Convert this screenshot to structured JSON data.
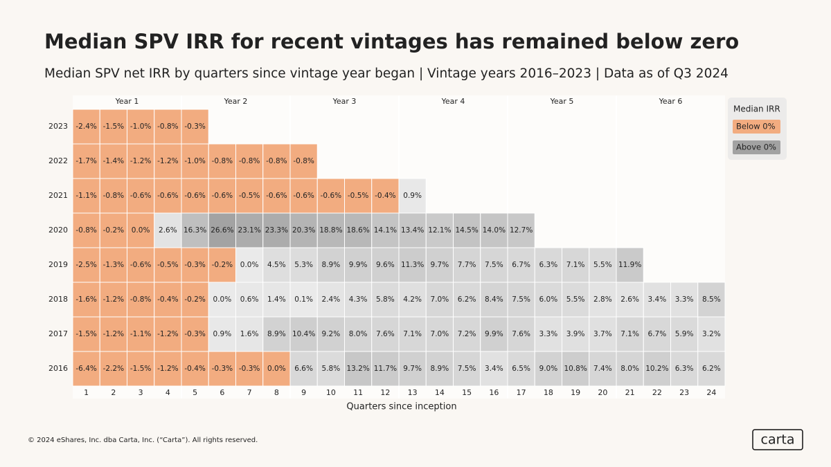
{
  "chart_data": {
    "type": "heatmap",
    "title": "Median SPV IRR for recent vintages has remained below zero",
    "subtitle": "Median SPV net IRR by quarters since vintage year began |  Vintage years 2016–2023  | Data as of Q3 2024",
    "x_label": "Quarters since inception",
    "column_groups": [
      "Year 1",
      "Year 2",
      "Year 3",
      "Year 4",
      "Year 5",
      "Year 6"
    ],
    "x": [
      1,
      2,
      3,
      4,
      5,
      6,
      7,
      8,
      9,
      10,
      11,
      12,
      13,
      14,
      15,
      16,
      17,
      18,
      19,
      20,
      21,
      22,
      23,
      24
    ],
    "y": [
      "2023",
      "2022",
      "2021",
      "2020",
      "2019",
      "2018",
      "2017",
      "2016"
    ],
    "values": [
      [
        -2.4,
        -1.5,
        -1.0,
        -0.8,
        -0.3,
        null,
        null,
        null,
        null,
        null,
        null,
        null,
        null,
        null,
        null,
        null,
        null,
        null,
        null,
        null,
        null,
        null,
        null,
        null
      ],
      [
        -1.7,
        -1.4,
        -1.2,
        -1.2,
        -1.0,
        -0.8,
        -0.8,
        -0.8,
        -0.8,
        null,
        null,
        null,
        null,
        null,
        null,
        null,
        null,
        null,
        null,
        null,
        null,
        null,
        null,
        null
      ],
      [
        -1.1,
        -0.8,
        -0.6,
        -0.6,
        -0.6,
        -0.6,
        -0.5,
        -0.6,
        -0.6,
        -0.6,
        -0.5,
        -0.4,
        0.9,
        null,
        null,
        null,
        null,
        null,
        null,
        null,
        null,
        null,
        null,
        null
      ],
      [
        -0.8,
        -0.2,
        -0.0,
        2.6,
        16.3,
        26.6,
        23.1,
        23.3,
        20.3,
        18.8,
        18.6,
        14.1,
        13.4,
        12.1,
        14.5,
        14.0,
        12.7,
        null,
        null,
        null,
        null,
        null,
        null,
        null
      ],
      [
        -2.5,
        -1.3,
        -0.6,
        -0.5,
        -0.3,
        -0.2,
        0.0,
        4.5,
        5.3,
        8.9,
        9.9,
        9.6,
        11.3,
        9.7,
        7.7,
        7.5,
        6.7,
        6.3,
        7.1,
        5.5,
        11.9,
        null,
        null,
        null
      ],
      [
        -1.6,
        -1.2,
        -0.8,
        -0.4,
        -0.2,
        0.0,
        0.6,
        1.4,
        0.1,
        2.4,
        4.3,
        5.8,
        4.2,
        7.0,
        6.2,
        8.4,
        7.5,
        6.0,
        5.5,
        2.8,
        2.6,
        3.4,
        3.3,
        8.5
      ],
      [
        -1.5,
        -1.2,
        -1.1,
        -1.2,
        -0.3,
        0.9,
        1.6,
        8.9,
        10.4,
        9.2,
        8.0,
        7.6,
        7.1,
        7.0,
        7.2,
        9.9,
        7.6,
        3.3,
        3.9,
        3.7,
        7.1,
        6.7,
        5.9,
        3.2
      ],
      [
        -6.4,
        -2.2,
        -1.5,
        -1.2,
        -0.4,
        -0.3,
        -0.3,
        -0.0,
        6.6,
        5.8,
        13.2,
        11.7,
        9.7,
        8.9,
        7.5,
        3.4,
        6.5,
        9.0,
        10.8,
        7.4,
        8.0,
        10.2,
        6.3,
        6.2
      ]
    ],
    "value_labels": [
      [
        "-2.4%",
        "-1.5%",
        "-1.0%",
        "-0.8%",
        "-0.3%",
        null,
        null,
        null,
        null,
        null,
        null,
        null,
        null,
        null,
        null,
        null,
        null,
        null,
        null,
        null,
        null,
        null,
        null,
        null
      ],
      [
        "-1.7%",
        "-1.4%",
        "-1.2%",
        "-1.2%",
        "-1.0%",
        "-0.8%",
        "-0.8%",
        "-0.8%",
        "-0.8%",
        null,
        null,
        null,
        null,
        null,
        null,
        null,
        null,
        null,
        null,
        null,
        null,
        null,
        null,
        null
      ],
      [
        "-1.1%",
        "-0.8%",
        "-0.6%",
        "-0.6%",
        "-0.6%",
        "-0.6%",
        "-0.5%",
        "-0.6%",
        "-0.6%",
        "-0.6%",
        "-0.5%",
        "-0.4%",
        "0.9%",
        null,
        null,
        null,
        null,
        null,
        null,
        null,
        null,
        null,
        null,
        null
      ],
      [
        "-0.8%",
        "-0.2%",
        "0.0%",
        "2.6%",
        "16.3%",
        "26.6%",
        "23.1%",
        "23.3%",
        "20.3%",
        "18.8%",
        "18.6%",
        "14.1%",
        "13.4%",
        "12.1%",
        "14.5%",
        "14.0%",
        "12.7%",
        null,
        null,
        null,
        null,
        null,
        null,
        null
      ],
      [
        "-2.5%",
        "-1.3%",
        "-0.6%",
        "-0.5%",
        "-0.3%",
        "-0.2%",
        "0.0%",
        "4.5%",
        "5.3%",
        "8.9%",
        "9.9%",
        "9.6%",
        "11.3%",
        "9.7%",
        "7.7%",
        "7.5%",
        "6.7%",
        "6.3%",
        "7.1%",
        "5.5%",
        "11.9%",
        null,
        null,
        null
      ],
      [
        "-1.6%",
        "-1.2%",
        "-0.8%",
        "-0.4%",
        "-0.2%",
        "0.0%",
        "0.6%",
        "1.4%",
        "0.1%",
        "2.4%",
        "4.3%",
        "5.8%",
        "4.2%",
        "7.0%",
        "6.2%",
        "8.4%",
        "7.5%",
        "6.0%",
        "5.5%",
        "2.8%",
        "2.6%",
        "3.4%",
        "3.3%",
        "8.5%"
      ],
      [
        "-1.5%",
        "-1.2%",
        "-1.1%",
        "-1.2%",
        "-0.3%",
        "0.9%",
        "1.6%",
        "8.9%",
        "10.4%",
        "9.2%",
        "8.0%",
        "7.6%",
        "7.1%",
        "7.0%",
        "7.2%",
        "9.9%",
        "7.6%",
        "3.3%",
        "3.9%",
        "3.7%",
        "7.1%",
        "6.7%",
        "5.9%",
        "3.2%"
      ],
      [
        "-6.4%",
        "-2.2%",
        "-1.5%",
        "-1.2%",
        "-0.4%",
        "-0.3%",
        "-0.3%",
        "0.0%",
        "6.6%",
        "5.8%",
        "13.2%",
        "11.7%",
        "9.7%",
        "8.9%",
        "7.5%",
        "3.4%",
        "6.5%",
        "9.0%",
        "10.8%",
        "7.4%",
        "8.0%",
        "10.2%",
        "6.3%",
        "6.2%"
      ]
    ],
    "below_color": "#f2ac80",
    "above_color_low": "#eaeaea",
    "above_color_high": "#a2a2a2",
    "color_range": [
      0,
      27
    ],
    "legend": {
      "title": "Median IRR",
      "items": [
        "Below 0%",
        "Above 0%"
      ]
    }
  },
  "footer": "© 2024 eShares, Inc. dba Carta, Inc. (“Carta”). All rights reserved.",
  "logo": "carta"
}
